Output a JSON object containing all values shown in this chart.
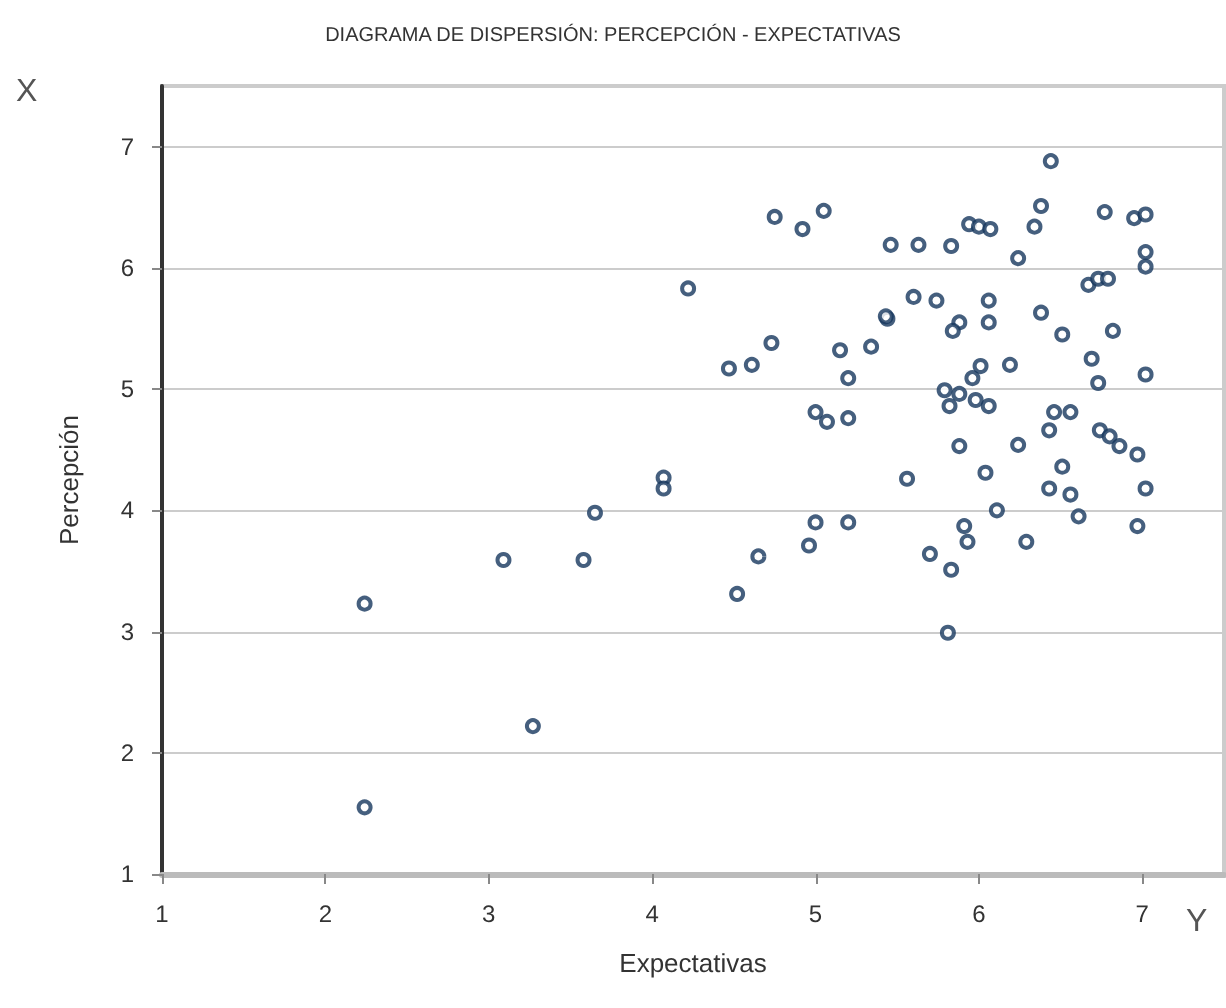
{
  "chart_data": {
    "type": "scatter",
    "title": "DIAGRAMA DE DISPERSIÓN: PERCEPCIÓN - EXPECTATIVAS",
    "xlabel": "Expectativas",
    "ylabel": "Percepción",
    "annotations": [
      "X",
      "Y"
    ],
    "x": [
      2.24,
      2.24,
      3.09,
      3.27,
      3.58,
      3.65,
      4.07,
      4.07,
      4.22,
      4.47,
      4.61,
      4.73,
      4.75,
      4.92,
      5.05,
      5.15,
      5.34,
      5.44,
      5.2,
      5.0,
      5.07,
      5.2,
      5.0,
      5.2,
      4.96,
      4.65,
      4.52,
      5.46,
      5.63,
      5.83,
      5.6,
      5.74,
      5.94,
      6.0,
      6.07,
      6.06,
      5.43,
      5.88,
      5.84,
      6.06,
      6.24,
      6.34,
      6.38,
      6.44,
      6.77,
      6.95,
      7.02,
      7.02,
      7.02,
      6.67,
      6.73,
      6.79,
      6.38,
      6.51,
      6.82,
      6.19,
      6.69,
      6.01,
      5.96,
      6.73,
      7.02,
      5.79,
      5.88,
      5.98,
      6.06,
      5.82,
      6.46,
      6.56,
      6.43,
      6.74,
      6.8,
      6.86,
      6.97,
      5.88,
      6.24,
      5.56,
      6.04,
      6.51,
      6.43,
      6.56,
      7.02,
      6.11,
      5.91,
      6.61,
      6.97,
      5.93,
      6.29,
      5.7,
      5.83,
      5.81
    ],
    "values": [
      1.55,
      3.23,
      3.59,
      2.22,
      3.59,
      3.98,
      4.27,
      4.18,
      5.83,
      5.17,
      5.2,
      5.38,
      6.42,
      6.32,
      6.47,
      5.32,
      5.35,
      5.58,
      5.09,
      4.81,
      4.73,
      4.76,
      3.9,
      3.9,
      3.71,
      3.62,
      3.31,
      6.19,
      6.19,
      6.18,
      5.76,
      5.73,
      6.36,
      6.34,
      6.32,
      5.73,
      5.6,
      5.55,
      5.48,
      5.55,
      6.08,
      6.34,
      6.51,
      6.88,
      6.46,
      6.41,
      6.44,
      6.13,
      6.01,
      5.86,
      5.91,
      5.91,
      5.63,
      5.45,
      5.48,
      5.2,
      5.25,
      5.19,
      5.09,
      5.05,
      5.12,
      4.99,
      4.96,
      4.91,
      4.86,
      4.86,
      4.81,
      4.81,
      4.66,
      4.66,
      4.61,
      4.53,
      4.46,
      4.53,
      4.54,
      4.26,
      4.31,
      4.36,
      4.18,
      4.13,
      4.18,
      4.0,
      3.87,
      3.95,
      3.87,
      3.74,
      3.74,
      3.64,
      3.51,
      2.99
    ],
    "color": "#17375e",
    "marker": "circle",
    "xlim": [
      1,
      7.5
    ],
    "ylim": [
      1,
      7.5
    ],
    "xticks": [
      1,
      2,
      3,
      4,
      5,
      6,
      7
    ],
    "yticks": [
      1,
      2,
      3,
      4,
      5,
      6,
      7
    ],
    "grid": "y"
  }
}
